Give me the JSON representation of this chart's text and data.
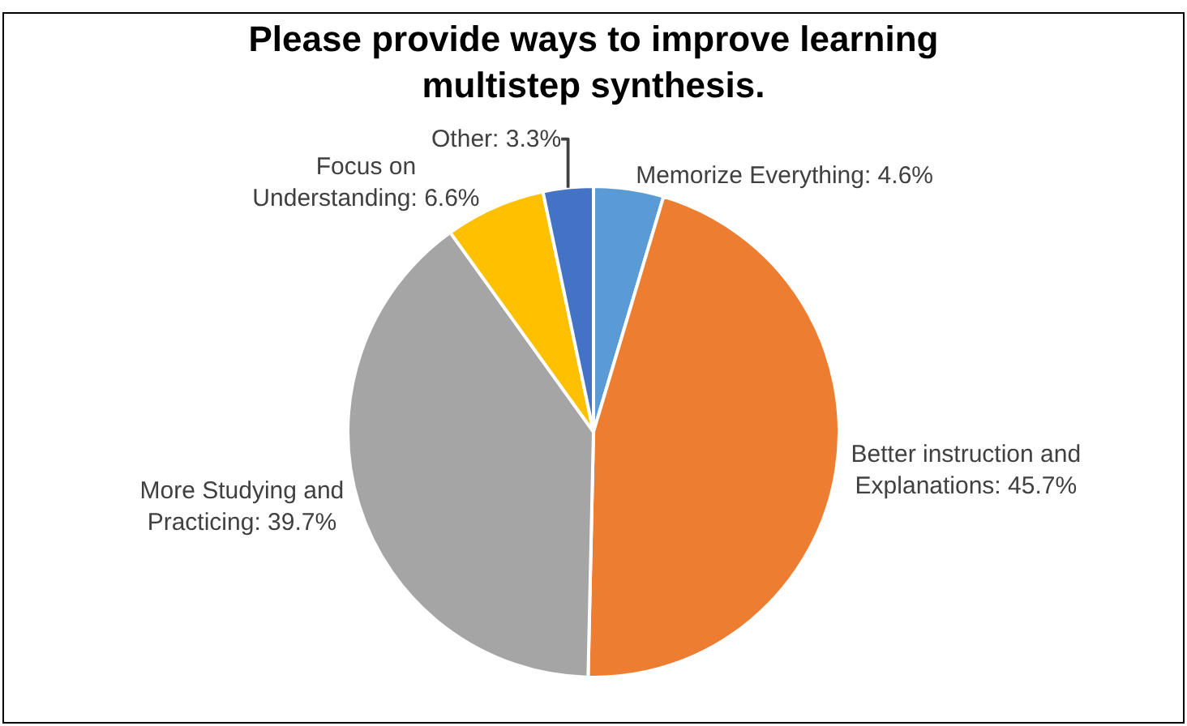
{
  "chart_data": {
    "type": "pie",
    "title": "Please provide ways to improve learning multistep synthesis.",
    "categories": [
      "Memorize Everything",
      "Better instruction and Explanations",
      "More Studying and Practicing",
      "Focus on Understanding",
      "Other"
    ],
    "values": [
      4.6,
      45.7,
      39.7,
      6.6,
      3.3
    ],
    "value_labels": [
      "4.6%",
      "45.7%",
      "39.7%",
      "6.6%",
      "3.3%"
    ],
    "colors": [
      "#5b9bd5",
      "#ed7d31",
      "#a5a5a5",
      "#ffc000",
      "#4472c4"
    ],
    "legend": false
  }
}
